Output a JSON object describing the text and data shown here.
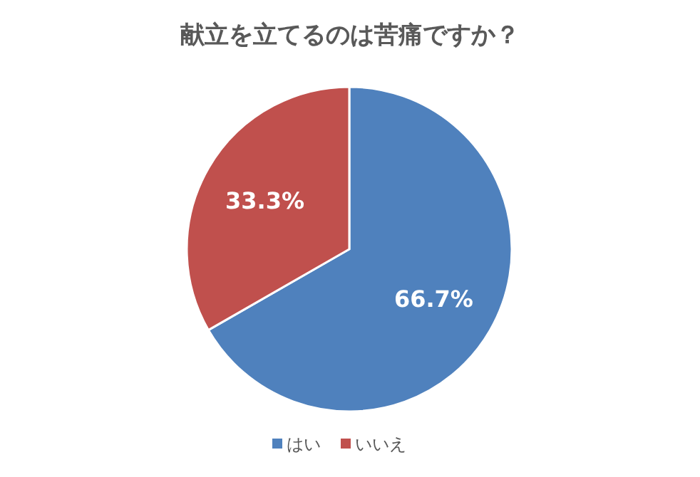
{
  "chart_data": {
    "type": "pie",
    "title": "献立を立てるのは苦痛ですか？",
    "categories": [
      "はい",
      "いいえ"
    ],
    "values": [
      66.7,
      33.3
    ],
    "colors": [
      "#4f81bd",
      "#c0504d"
    ],
    "value_labels": [
      "66.7%",
      "33.3%"
    ],
    "legend": "bottom"
  }
}
